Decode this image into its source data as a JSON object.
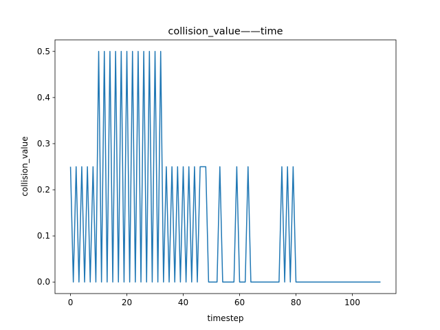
{
  "chart_data": {
    "type": "line",
    "title": "collision_value——time",
    "xlabel": "timestep",
    "ylabel": "collision_value",
    "xlim": [
      -5.5,
      115.5
    ],
    "ylim": [
      -0.025,
      0.525
    ],
    "xticks": [
      0,
      20,
      40,
      60,
      80,
      100
    ],
    "yticks": [
      0.0,
      0.1,
      0.2,
      0.3,
      0.4,
      0.5
    ],
    "ytick_labels": [
      "0.0",
      "0.1",
      "0.2",
      "0.3",
      "0.4",
      "0.5"
    ],
    "grid": false,
    "line_color": "#1f77b4",
    "series": [
      {
        "x": [
          0,
          1,
          2,
          3,
          4,
          5,
          6,
          7,
          8,
          9,
          10,
          11,
          12,
          13,
          14,
          15,
          16,
          17,
          18,
          19,
          20,
          21,
          22,
          23,
          24,
          25,
          26,
          27,
          28,
          29,
          30,
          31,
          32,
          33,
          34,
          35,
          36,
          37,
          38,
          39,
          40,
          41,
          42,
          43,
          44,
          45,
          46,
          47,
          48,
          49,
          50,
          51,
          52,
          53,
          54,
          55,
          56,
          57,
          58,
          59,
          60,
          61,
          62,
          63,
          64,
          65,
          66,
          67,
          68,
          69,
          70,
          71,
          72,
          73,
          74,
          75,
          76,
          77,
          78,
          79,
          80,
          81,
          82,
          83,
          84,
          85,
          86,
          87,
          88,
          89,
          90,
          91,
          92,
          93,
          94,
          95,
          96,
          97,
          98,
          99,
          100,
          101,
          102,
          103,
          104,
          105,
          106,
          107,
          108,
          109,
          110
        ],
        "y": [
          0.25,
          0,
          0.25,
          0,
          0.25,
          0,
          0.25,
          0,
          0.25,
          0,
          0.5,
          0,
          0.5,
          0,
          0.5,
          0,
          0.5,
          0,
          0.5,
          0,
          0.5,
          0,
          0.5,
          0,
          0.5,
          0,
          0.5,
          0,
          0.5,
          0,
          0.5,
          0,
          0.5,
          0,
          0.25,
          0,
          0.25,
          0,
          0.25,
          0,
          0.25,
          0,
          0.25,
          0,
          0.25,
          0,
          0.25,
          0.25,
          0.25,
          0,
          0,
          0,
          0,
          0.25,
          0,
          0,
          0,
          0,
          0,
          0.25,
          0,
          0,
          0,
          0.25,
          0,
          0,
          0,
          0,
          0,
          0,
          0,
          0,
          0,
          0,
          0,
          0.25,
          0,
          0.25,
          0,
          0.25,
          0,
          0,
          0,
          0,
          0,
          0,
          0,
          0,
          0,
          0,
          0,
          0,
          0,
          0,
          0,
          0,
          0,
          0,
          0,
          0,
          0,
          0,
          0,
          0,
          0,
          0,
          0,
          0,
          0,
          0,
          0
        ]
      }
    ]
  }
}
